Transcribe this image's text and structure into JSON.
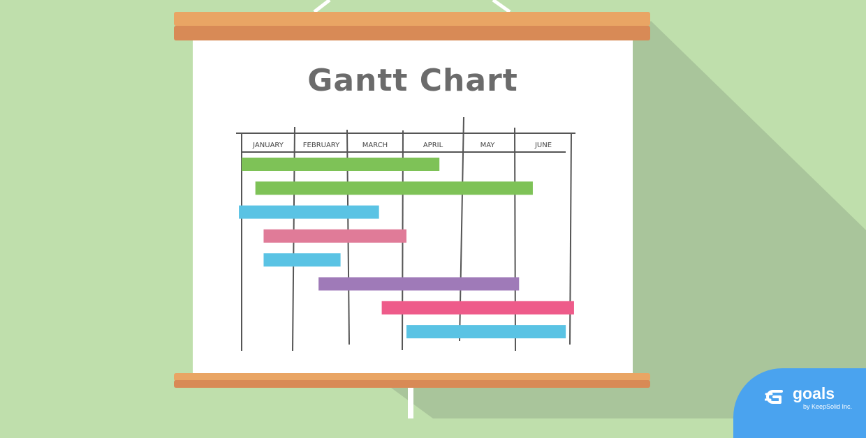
{
  "colors": {
    "background": "#bfdfac",
    "shadow": "#a9c59b",
    "roller_top": "#e9a564",
    "roller_bottom": "#d88a56",
    "board": "#ffffff",
    "grid": "#555555",
    "green": "#7ec257",
    "blue": "#5ac3e4",
    "pink": "#e07b98",
    "purple": "#9f7ab8",
    "hot_pink": "#ee5b8a",
    "brand": "#4aa3ef"
  },
  "chart_data": {
    "type": "gantt",
    "title": "Gantt Chart",
    "months": [
      "JANUARY",
      "FEBRUARY",
      "MARCH",
      "APRIL",
      "MAY",
      "JUNE"
    ],
    "x_unit": "month",
    "xlim": [
      0,
      6
    ],
    "bars": [
      {
        "start": 0.0,
        "end": 3.6,
        "color": "green"
      },
      {
        "start": 0.25,
        "end": 5.3,
        "color": "green"
      },
      {
        "start": -0.05,
        "end": 2.5,
        "color": "blue"
      },
      {
        "start": 0.4,
        "end": 3.0,
        "color": "pink"
      },
      {
        "start": 0.4,
        "end": 1.8,
        "color": "blue"
      },
      {
        "start": 1.4,
        "end": 5.05,
        "color": "purple"
      },
      {
        "start": 2.55,
        "end": 6.05,
        "color": "hot_pink"
      },
      {
        "start": 3.0,
        "end": 5.9,
        "color": "blue"
      }
    ]
  },
  "brand": {
    "name": "goals",
    "tagline": "by KeepSolid Inc.",
    "icon": "goals-logo-icon"
  }
}
